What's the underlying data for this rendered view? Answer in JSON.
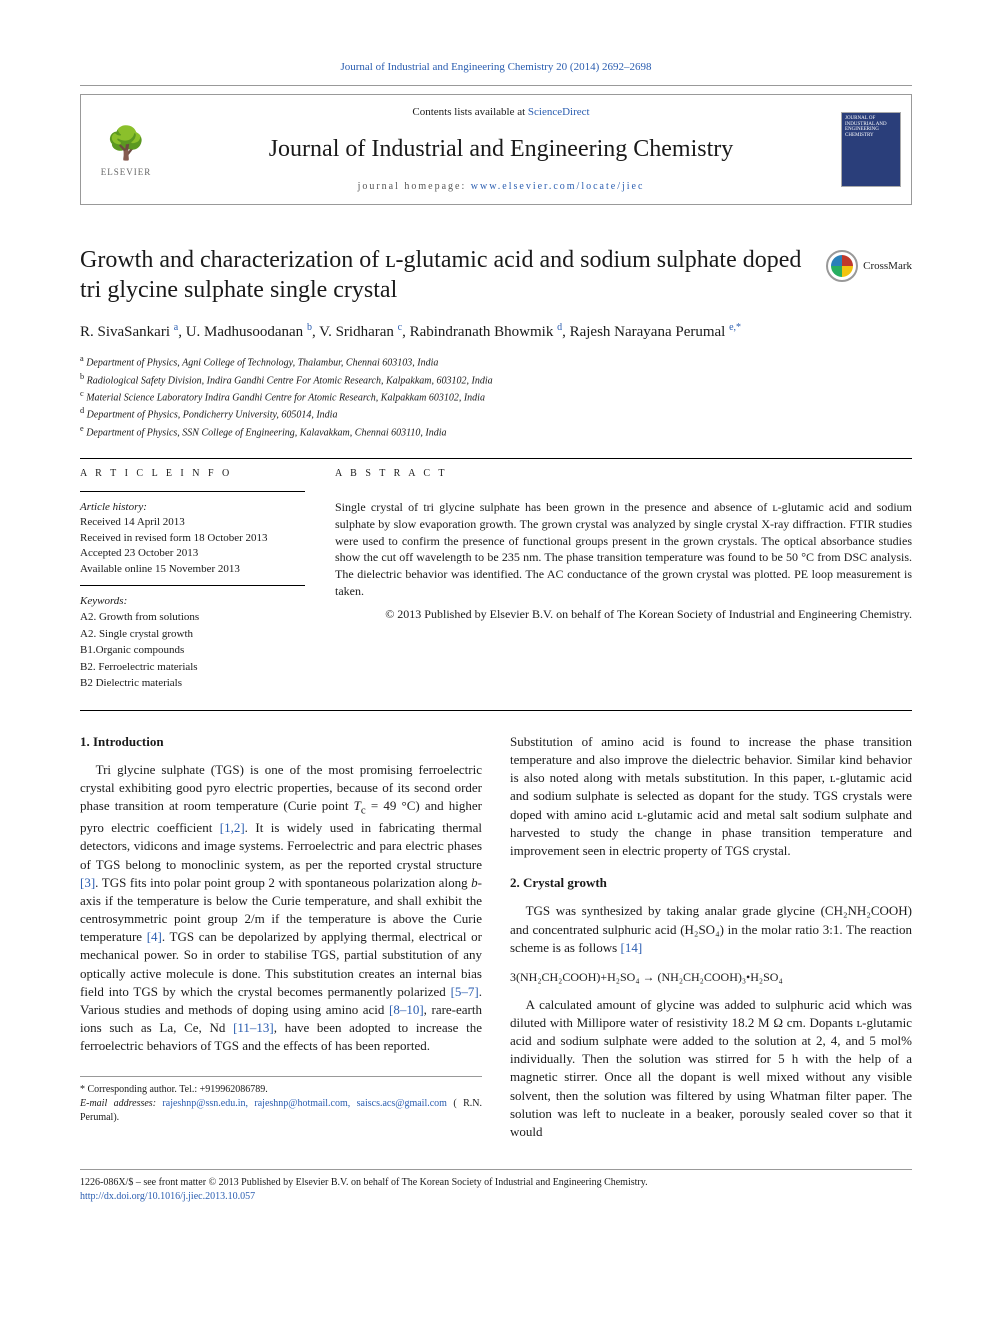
{
  "header": {
    "journal_ref_link": "Journal of Industrial and Engineering Chemistry 20 (2014) 2692–2698",
    "contents_prefix": "Contents lists available at ",
    "contents_link": "ScienceDirect",
    "journal_name": "Journal of Industrial and Engineering Chemistry",
    "homepage_prefix": "journal homepage: ",
    "homepage_link": "www.elsevier.com/locate/jiec",
    "elsevier_label": "ELSEVIER",
    "cover_text": "JOURNAL OF INDUSTRIAL AND ENGINEERING CHEMISTRY"
  },
  "title": "Growth and characterization of ʟ-glutamic acid and sodium sulphate doped tri glycine sulphate single crystal",
  "crossmark": "CrossMark",
  "authors_html": "R. SivaSankari <sup>a</sup>, U. Madhusoodanan <sup>b</sup>, V. Sridharan <sup>c</sup>, Rabindranath Bhowmik <sup>d</sup>, Rajesh Narayana Perumal <sup>e,*</sup>",
  "affiliations": [
    "a Department of Physics, Agni College of Technology, Thalambur, Chennai 603103, India",
    "b Radiological Safety Division, Indira Gandhi Centre For Atomic Research, Kalpakkam, 603102, India",
    "c Material Science Laboratory Indira Gandhi Centre for Atomic Research, Kalpakkam 603102, India",
    "d Department of Physics, Pondicherry University, 605014, India",
    "e Department of Physics, SSN College of Engineering, Kalavakkam, Chennai 603110, India"
  ],
  "article_info": {
    "heading": "A R T I C L E   I N F O",
    "history_label": "Article history:",
    "history": [
      "Received 14 April 2013",
      "Received in revised form 18 October 2013",
      "Accepted 23 October 2013",
      "Available online 15 November 2013"
    ],
    "keywords_label": "Keywords:",
    "keywords": [
      "A2. Growth from solutions",
      "A2. Single crystal growth",
      "B1.Organic compounds",
      "B2. Ferroelectric materials",
      "B2 Dielectric materials"
    ]
  },
  "abstract": {
    "heading": "A B S T R A C T",
    "text": "Single crystal of tri glycine sulphate has been grown in the presence and absence of ʟ-glutamic acid and sodium sulphate by slow evaporation growth. The grown crystal was analyzed by single crystal X-ray diffraction. FTIR studies were used to confirm the presence of functional groups present in the grown crystals. The optical absorbance studies show the cut off wavelength to be 235 nm. The phase transition temperature was found to be 50 °C from DSC analysis. The dielectric behavior was identified. The AC conductance of the grown crystal was plotted. PE loop measurement is taken.",
    "copyright": "© 2013 Published by Elsevier B.V. on behalf of The Korean Society of Industrial and Engineering Chemistry."
  },
  "body": {
    "intro_heading": "1. Introduction",
    "intro_p1": "Tri glycine sulphate (TGS) is one of the most promising ferroelectric crystal exhibiting good pyro electric properties, because of its second order phase transition at room temperature (Curie point Tc = 49 °C) and higher pyro electric coefficient [1,2]. It is widely used in fabricating thermal detectors, vidicons and image systems. Ferroelectric and para electric phases of TGS belong to monoclinic system, as per the reported crystal structure [3]. TGS fits into polar point group 2 with spontaneous polarization along b-axis if the temperature is below the Curie temperature, and shall exhibit the centrosymmetric point group 2/m if the temperature is above the Curie temperature [4]. TGS can be depolarized by applying thermal, electrical or mechanical power. So in order to stabilise TGS, partial substitution of any optically active molecule is done. This substitution creates an internal bias field into TGS by which the crystal becomes permanently polarized [5–7]. Various studies and methods of doping using amino acid [8–10], rare-earth ions such as La, Ce, Nd [11–13], have been adopted to increase the ferroelectric behaviors of TGS and the effects of has been reported.",
    "intro_p2": "Substitution of amino acid is found to increase the phase transition temperature and also improve the dielectric behavior. Similar kind behavior is also noted along with metals substitution. In this paper, ʟ-glutamic acid and sodium sulphate is selected as dopant for the study. TGS crystals were doped with amino acid ʟ-glutamic acid and metal salt sodium sulphate and harvested to study the change in phase transition temperature and improvement seen in electric property of TGS crystal.",
    "growth_heading": "2. Crystal growth",
    "growth_p1": "TGS was synthesized by taking analar grade glycine (CH₂NH₂COOH) and concentrated sulphuric acid (H₂SO₄) in the molar ratio 3:1. The reaction scheme is as follows [14]",
    "reaction": "3(NH₂CH₂COOH)+H₂SO₄ → (NH₂CH₂COOH)₃•H₂SO₄",
    "growth_p2": "A calculated amount of glycine was added to sulphuric acid which was diluted with Millipore water of resistivity 18.2 M Ω cm. Dopants ʟ-glutamic acid and sodium sulphate were added to the solution at 2, 4, and 5 mol% individually. Then the solution was stirred for 5 h with the help of a magnetic stirrer. Once all the dopant is well mixed without any visible solvent, then the solution was filtered by using Whatman filter paper. The solution was left to nucleate in a beaker, porously sealed cover so that it would"
  },
  "footnote": {
    "corresponding": "* Corresponding author. Tel.: +919962086789.",
    "email_label": "E-mail addresses: ",
    "emails": "rajeshnp@ssn.edu.in, rajeshnp@hotmail.com, saiscs.acs@gmail.com",
    "email_suffix": " ( R.N. Perumal)."
  },
  "footer": {
    "line1": "1226-086X/$ – see front matter © 2013 Published by Elsevier B.V. on behalf of The Korean Society of Industrial and Engineering Chemistry.",
    "doi": "http://dx.doi.org/10.1016/j.jiec.2013.10.057"
  },
  "colors": {
    "link": "#2a5db0",
    "text": "#1a1a1a",
    "rule": "#999999",
    "cover_bg": "#2a3e7a",
    "elsevier_orange": "#e67e22"
  }
}
